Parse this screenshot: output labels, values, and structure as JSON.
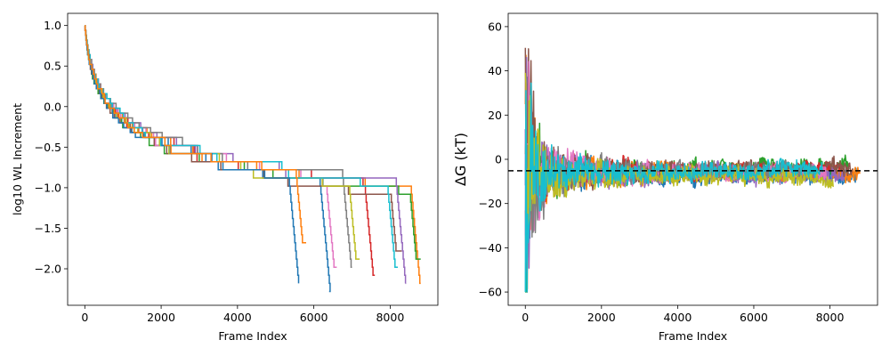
{
  "chart_data": [
    {
      "type": "line",
      "xlabel": "Frame Index",
      "ylabel": "log10 WL Increment",
      "xlim": [
        -450,
        9250
      ],
      "ylim": [
        -2.45,
        1.15
      ],
      "xticks": [
        0,
        2000,
        4000,
        6000,
        8000
      ],
      "xtick_labels": [
        "0",
        "2000",
        "4000",
        "6000",
        "8000"
      ],
      "yticks": [
        -2.0,
        -1.5,
        -1.0,
        -0.5,
        0.0,
        0.5,
        1.0
      ],
      "ytick_labels": [
        "−2.0",
        "−1.5",
        "−1.0",
        "−0.5",
        "0.0",
        "0.5",
        "1.0"
      ],
      "grid": false,
      "steps": true,
      "series": [
        {
          "color": "#1f77b4",
          "end_x": 6400,
          "end_y": -2.3
        },
        {
          "color": "#ff7f0e",
          "end_x": 8800,
          "end_y": -2.2
        },
        {
          "color": "#2ca02c",
          "end_x": 8800,
          "end_y": -1.9
        },
        {
          "color": "#d62728",
          "end_x": 7600,
          "end_y": -2.1
        },
        {
          "color": "#9467bd",
          "end_x": 8400,
          "end_y": -2.2
        },
        {
          "color": "#8c564b",
          "end_x": 8300,
          "end_y": -1.8
        },
        {
          "color": "#e377c2",
          "end_x": 6600,
          "end_y": -2.0
        },
        {
          "color": "#7f7f7f",
          "end_x": 7000,
          "end_y": -2.0
        },
        {
          "color": "#bcbd22",
          "end_x": 7200,
          "end_y": -1.9
        },
        {
          "color": "#17becf",
          "end_x": 8200,
          "end_y": -2.0
        },
        {
          "color": "#1f77b4",
          "end_x": 5600,
          "end_y": -2.2
        },
        {
          "color": "#ff7f0e",
          "end_x": 5800,
          "end_y": -1.7
        }
      ]
    },
    {
      "type": "line",
      "xlabel": "Frame Index",
      "ylabel": "ΔG (kT)",
      "xlim": [
        -450,
        9250
      ],
      "ylim": [
        -66,
        66
      ],
      "xticks": [
        0,
        2000,
        4000,
        6000,
        8000
      ],
      "xtick_labels": [
        "0",
        "2000",
        "4000",
        "6000",
        "8000"
      ],
      "yticks": [
        -60,
        -40,
        -20,
        0,
        20,
        40,
        60
      ],
      "ytick_labels": [
        "−60",
        "−40",
        "−20",
        "0",
        "20",
        "40",
        "60"
      ],
      "grid": false,
      "reference_line": {
        "y": -5.2,
        "style": "dashed",
        "color": "#000000"
      },
      "series": [
        {
          "color": "#1f77b4",
          "end_x": 8700,
          "final": -8
        },
        {
          "color": "#ff7f0e",
          "end_x": 8800,
          "final": -6
        },
        {
          "color": "#2ca02c",
          "end_x": 8500,
          "final": -3
        },
        {
          "color": "#d62728",
          "end_x": 8300,
          "final": -5
        },
        {
          "color": "#9467bd",
          "end_x": 8400,
          "final": -7
        },
        {
          "color": "#8c564b",
          "end_x": 8600,
          "final": -4
        },
        {
          "color": "#e377c2",
          "end_x": 7900,
          "final": -6
        },
        {
          "color": "#7f7f7f",
          "end_x": 7600,
          "final": -5
        },
        {
          "color": "#bcbd22",
          "end_x": 8100,
          "final": -9
        },
        {
          "color": "#17becf",
          "end_x": 7800,
          "final": -5
        }
      ]
    }
  ]
}
